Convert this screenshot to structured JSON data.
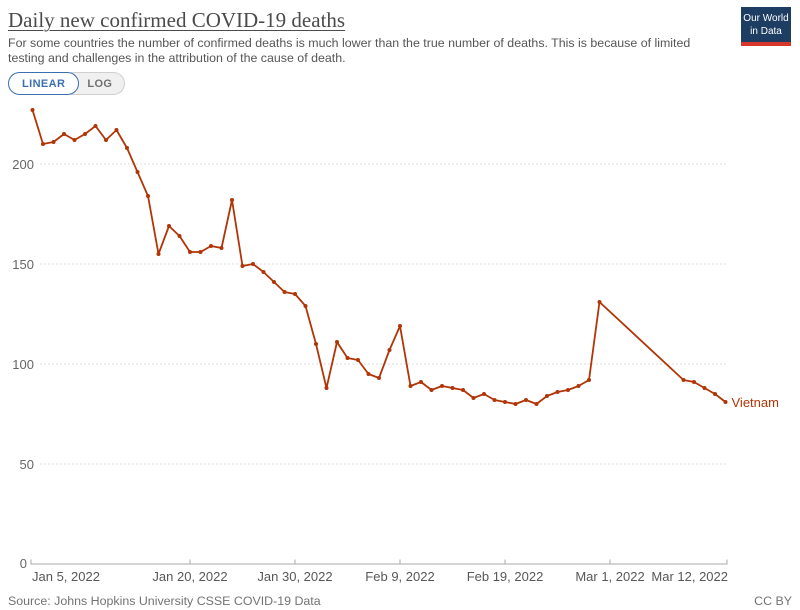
{
  "header": {
    "title": "Daily new confirmed COVID-19 deaths",
    "subtitle": "For some countries the number of confirmed deaths is much lower than the true number of deaths. This is because of limited testing and challenges in the attribution of the cause of death."
  },
  "logo": {
    "line1": "Our World",
    "line2": "in Data",
    "bg_color": "#1d3d63",
    "accent_color": "#d8352e"
  },
  "controls": {
    "linear_label": "LINEAR",
    "log_label": "LOG",
    "selected": "LINEAR",
    "accent_color": "#3c6fb1"
  },
  "chart_data": {
    "type": "line",
    "title": "Daily new confirmed COVID-19 deaths",
    "ylim": [
      0,
      232
    ],
    "grid": "horizontal-dashed",
    "y_ticks": [
      {
        "label": "0",
        "value": 0
      },
      {
        "label": "50",
        "value": 50
      },
      {
        "label": "100",
        "value": 100
      },
      {
        "label": "150",
        "value": 150
      },
      {
        "label": "200",
        "value": 200
      }
    ],
    "x_ticks": [
      {
        "label": "Jan 5, 2022",
        "day": 0
      },
      {
        "label": "Jan 20, 2022",
        "day": 15
      },
      {
        "label": "Jan 30, 2022",
        "day": 25
      },
      {
        "label": "Feb 9, 2022",
        "day": 35
      },
      {
        "label": "Feb 19, 2022",
        "day": 45
      },
      {
        "label": "Mar 1, 2022",
        "day": 55
      },
      {
        "label": "Mar 12, 2022",
        "day": 66
      }
    ],
    "series": [
      {
        "name": "Vietnam",
        "color": "#b13507",
        "dates": [
          "Jan 5",
          "Jan 6",
          "Jan 7",
          "Jan 8",
          "Jan 9",
          "Jan 10",
          "Jan 11",
          "Jan 12",
          "Jan 13",
          "Jan 14",
          "Jan 15",
          "Jan 16",
          "Jan 17",
          "Jan 18",
          "Jan 19",
          "Jan 20",
          "Jan 21",
          "Jan 22",
          "Jan 23",
          "Jan 24",
          "Jan 25",
          "Jan 26",
          "Jan 27",
          "Jan 28",
          "Jan 29",
          "Jan 30",
          "Jan 31",
          "Feb 1",
          "Feb 2",
          "Feb 3",
          "Feb 4",
          "Feb 5",
          "Feb 6",
          "Feb 7",
          "Feb 8",
          "Feb 9",
          "Feb 10",
          "Feb 11",
          "Feb 12",
          "Feb 13",
          "Feb 14",
          "Feb 15",
          "Feb 16",
          "Feb 17",
          "Feb 18",
          "Feb 19",
          "Feb 20",
          "Feb 21",
          "Feb 22",
          "Feb 23",
          "Feb 24",
          "Feb 25",
          "Feb 26",
          "Feb 27",
          "Feb 28",
          "Mar 1",
          "Mar 2",
          "Mar 3",
          "Mar 4",
          "Mar 5",
          "Mar 6",
          "Mar 7",
          "Mar 8",
          "Mar 9",
          "Mar 10",
          "Mar 11",
          "Mar 12"
        ],
        "values": [
          227,
          210,
          211,
          215,
          212,
          215,
          219,
          212,
          217,
          208,
          196,
          184,
          155,
          169,
          164,
          156,
          156,
          159,
          158,
          182,
          149,
          150,
          146,
          141,
          136,
          135,
          129,
          110,
          88,
          111,
          103,
          102,
          95,
          93,
          107,
          119,
          89,
          91,
          87,
          89,
          88,
          87,
          83,
          85,
          82,
          81,
          80,
          82,
          80,
          84,
          86,
          87,
          89,
          92,
          131,
          null,
          null,
          null,
          null,
          null,
          null,
          null,
          92,
          91,
          88,
          85,
          81
        ]
      }
    ]
  },
  "footer": {
    "source": "Source: Johns Hopkins University CSSE COVID-19 Data",
    "license": "CC BY"
  }
}
